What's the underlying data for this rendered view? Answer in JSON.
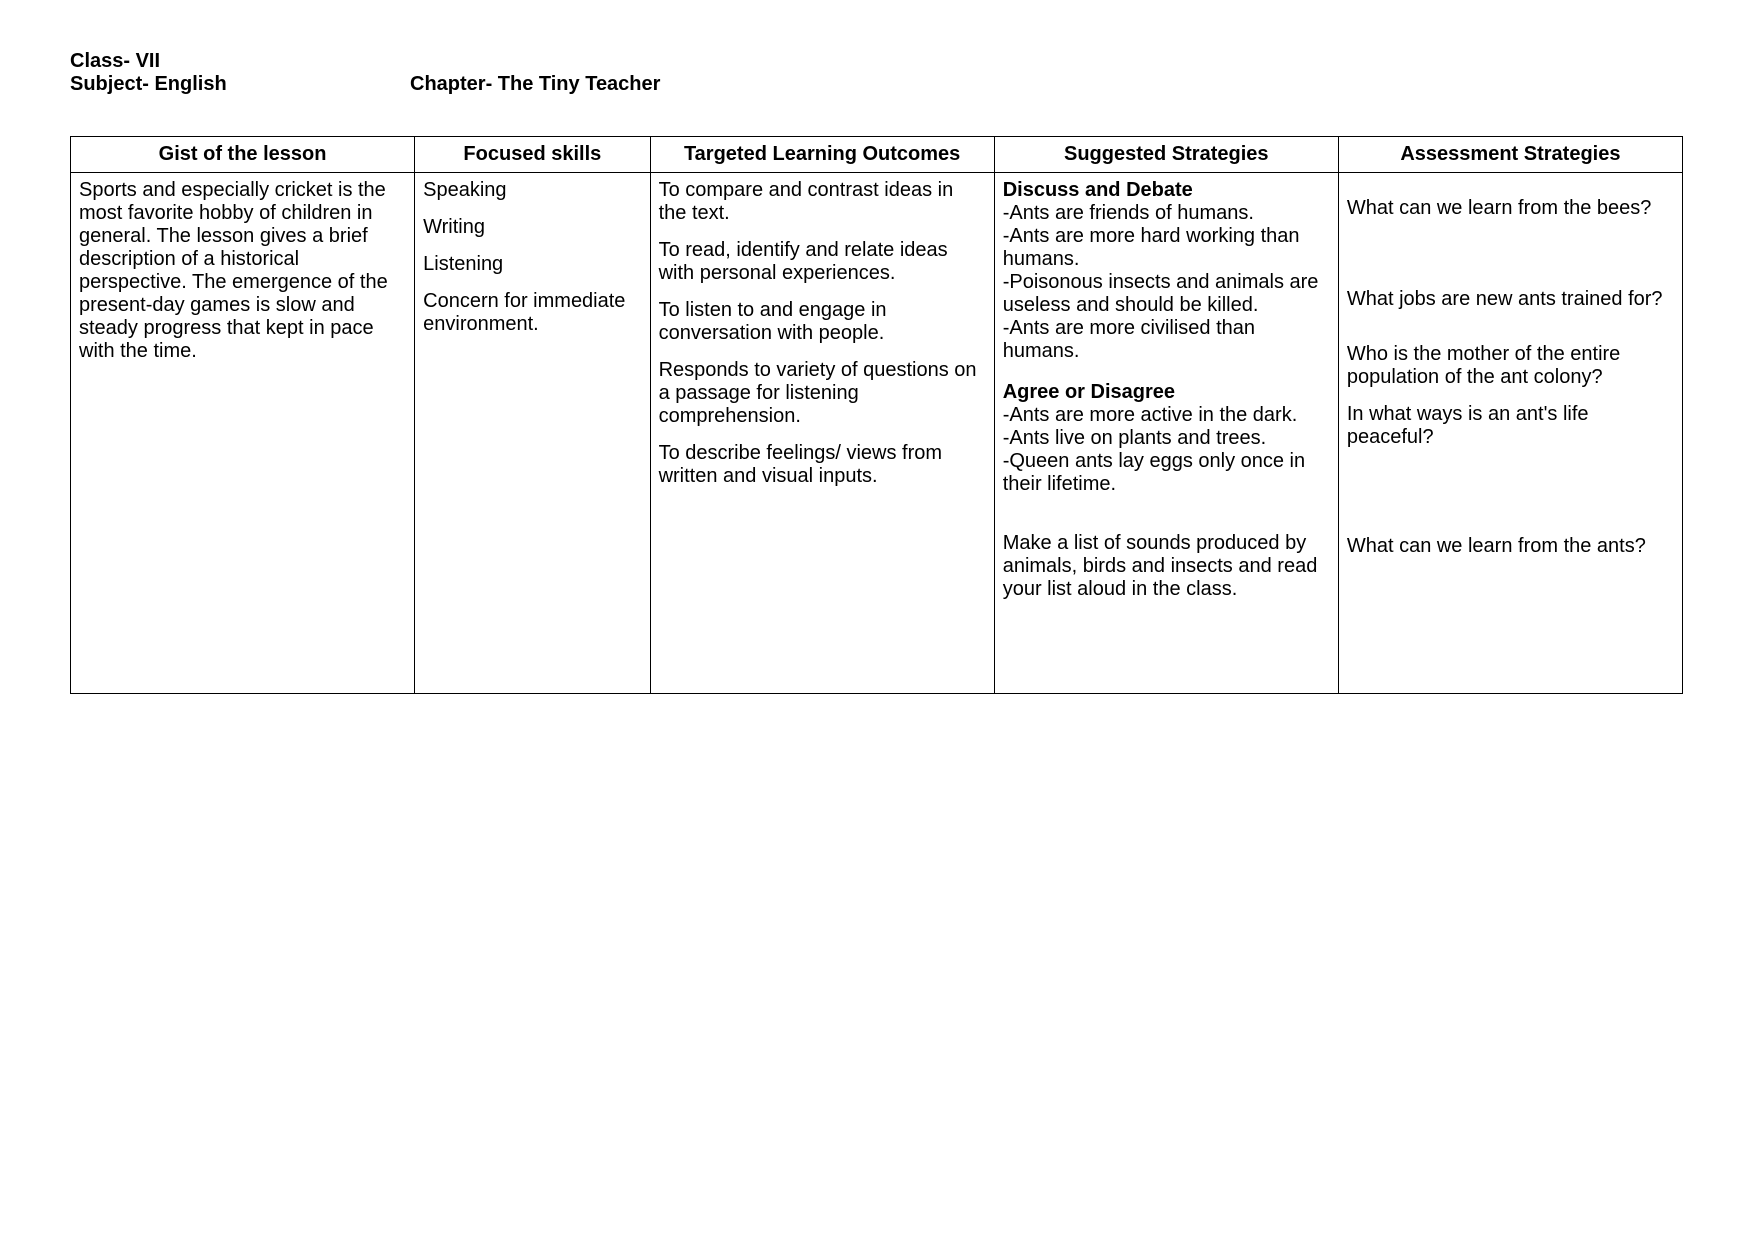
{
  "header": {
    "class_label": "Class- VII",
    "subject_label": "Subject- English",
    "chapter_label": "Chapter- The Tiny Teacher"
  },
  "table": {
    "columns": {
      "gist": "Gist of the lesson",
      "skills": "Focused skills",
      "outcomes": "Targeted Learning Outcomes",
      "strategies": "Suggested Strategies",
      "assessment": "Assessment Strategies"
    },
    "gist": "Sports and especially cricket is the most favorite hobby of children in general. The lesson gives a brief description of a historical perspective. The emergence of the present-day games is slow and steady progress that kept in pace with the time.",
    "skills": {
      "s1": "Speaking",
      "s2": "Writing",
      "s3": "Listening",
      "s4": "Concern for immediate environment."
    },
    "outcomes": {
      "o1": "To compare and contrast ideas in the text.",
      "o2": "To read, identify and relate ideas with personal experiences.",
      "o3": "To listen to and engage in conversation with people.",
      "o4": "Responds to variety of questions on a passage for listening comprehension.",
      "o5": "To describe feelings/ views from written and visual inputs."
    },
    "strategies": {
      "discuss_heading": "Discuss and Debate",
      "d1": "-Ants are friends of humans.",
      "d2": "-Ants are more hard working than humans.",
      "d3": "-Poisonous insects and animals are useless and should be killed.",
      "d4": "-Ants are more civilised than humans.",
      "agree_heading": "Agree or Disagree",
      "a1": "-Ants are more active in the dark.",
      "a2": "-Ants live on plants and trees.",
      "a3": "-Queen ants lay eggs only once in their lifetime.",
      "activity": "Make a list of sounds produced by animals, birds and insects and read your list aloud in the class."
    },
    "assessment": {
      "q1": "What can we learn from the bees?",
      "q2": "What jobs are new ants trained for?",
      "q3": "Who is the mother of the entire population of the ant colony?",
      "q4": "In what ways is an ant's life peaceful?",
      "q5": "What can we learn from the ants?"
    }
  }
}
